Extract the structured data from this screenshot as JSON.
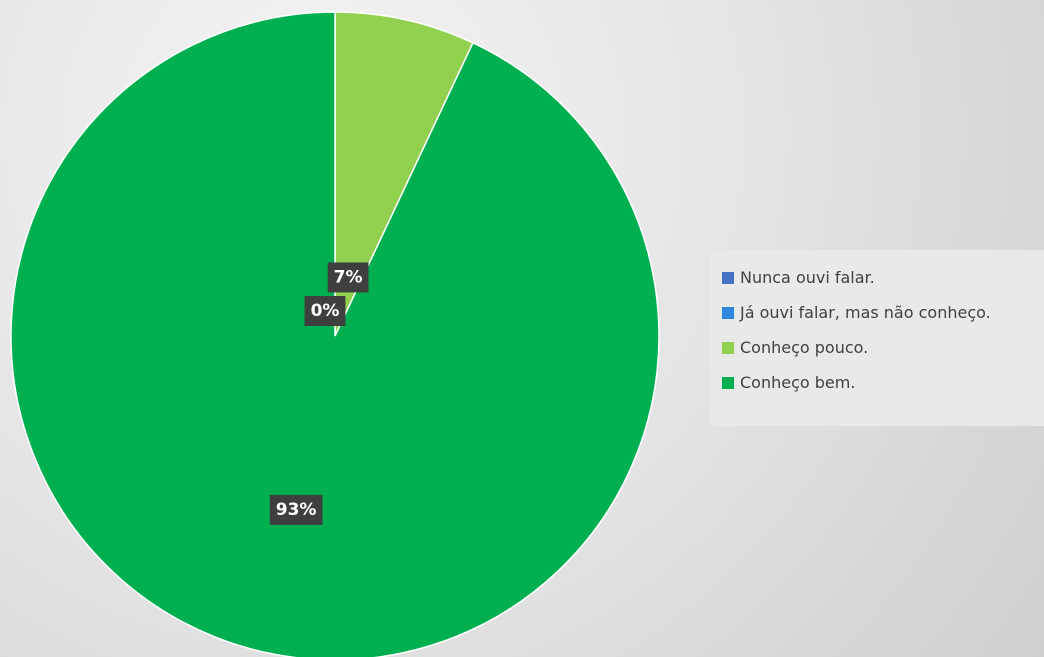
{
  "chart_data": {
    "type": "pie",
    "title": "",
    "categories": [
      "Nunca ouvi falar.",
      "Já ouvi falar, mas não conheço.",
      "Conheço pouco.",
      "Conheço bem."
    ],
    "values": [
      0,
      0,
      7,
      93
    ],
    "data_labels": [
      "0%",
      "",
      "7%",
      "93%"
    ],
    "colors": [
      "#4472c4",
      "#2e86de",
      "#92d050",
      "#00b050"
    ],
    "legend_position": "right"
  }
}
